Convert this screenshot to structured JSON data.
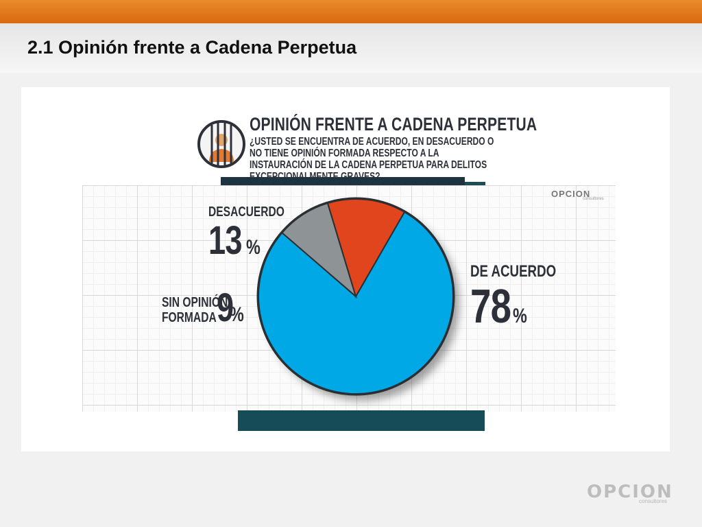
{
  "slide": {
    "title": "2.1 Opinión frente a Cadena Perpetua"
  },
  "infographic": {
    "title": "OPINIÓN FRENTE A CADENA PERPETUA",
    "question": "¿USTED SE ENCUENTRA DE ACUERDO, EN DESACUERDO O NO TIENE OPINIÓN FORMADA RESPECTO A LA INSTAURACIÓN DE LA CADENA PERPETUA PARA DELITOS EXCEPCIONALMENTE GRAVES?",
    "icon": "prisoner-behind-bars-icon",
    "logo_text": "OPCION",
    "logo_sub": "consultores"
  },
  "chart_data": {
    "type": "pie",
    "title": "OPINIÓN FRENTE A CADENA PERPETUA",
    "slices": [
      {
        "label": "DE ACUERDO",
        "value": 78,
        "display": "78",
        "unit": "%",
        "color": "#00a9e6"
      },
      {
        "label": "DESACUERDO",
        "value": 13,
        "display": "13",
        "unit": "%",
        "color": "#e0451d"
      },
      {
        "label": "SIN OPINIÓN FORMADA",
        "label_line1": "SIN OPINIÓN",
        "label_line2": "FORMADA",
        "value": 9,
        "display": "9",
        "unit": "%",
        "color": "#8e9496"
      }
    ]
  },
  "footer": {
    "logo_text": "OPCION",
    "logo_sub": "consultores"
  },
  "colors": {
    "accent_orange": "#e07a1c",
    "dark_bar": "#164c58",
    "agree": "#00a9e6",
    "disagree": "#e0451d",
    "no_opinion": "#8e9496"
  }
}
